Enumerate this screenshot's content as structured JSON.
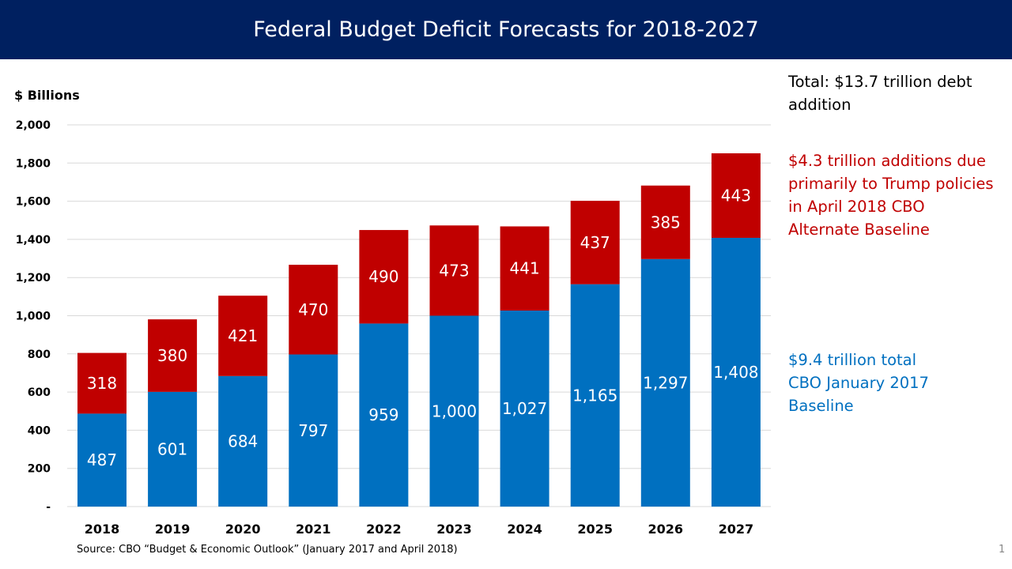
{
  "title": "Federal Budget Deficit Forecasts for 2018-2027",
  "notes": {
    "total": "Total:  $13.7 trillion debt addition",
    "red": "$4.3 trillion additions due primarily to Trump policies in April 2018 CBO Alternate Baseline",
    "blue": "$9.4 trillion total CBO January 2017 Baseline"
  },
  "source": "Source:  CBO “Budget & Economic Outlook”  (January 2017 and April 2018)",
  "page_number": "1",
  "chart_data": {
    "type": "bar",
    "stacked": true,
    "title": "Federal Budget Deficit Forecasts for 2018-2027",
    "ylabel": "$ Billions",
    "xlabel": "",
    "ylim": [
      0,
      2000
    ],
    "yticks": [
      0,
      200,
      400,
      600,
      800,
      1000,
      1200,
      1400,
      1600,
      1800,
      2000
    ],
    "ytick_labels": [
      "-",
      "200",
      "400",
      "600",
      "800",
      "1,000",
      "1,200",
      "1,400",
      "1,600",
      "1,800",
      "2,000"
    ],
    "grid": true,
    "categories": [
      "2018",
      "2019",
      "2020",
      "2021",
      "2022",
      "2023",
      "2024",
      "2025",
      "2026",
      "2027"
    ],
    "series": [
      {
        "values": [
          487,
          601,
          684,
          797,
          959,
          1000,
          1027,
          1165,
          1297,
          1408
        ],
        "labels": [
          "487",
          "601",
          "684",
          "797",
          "959",
          "1,000",
          "1,027",
          "1,165",
          "1,297",
          "1,408"
        ],
        "color": "#0070C0"
      },
      {
        "values": [
          318,
          380,
          421,
          470,
          490,
          473,
          441,
          437,
          385,
          443
        ],
        "labels": [
          "318",
          "380",
          "421",
          "470",
          "490",
          "473",
          "441",
          "437",
          "385",
          "443"
        ],
        "color": "#C00000"
      }
    ]
  }
}
